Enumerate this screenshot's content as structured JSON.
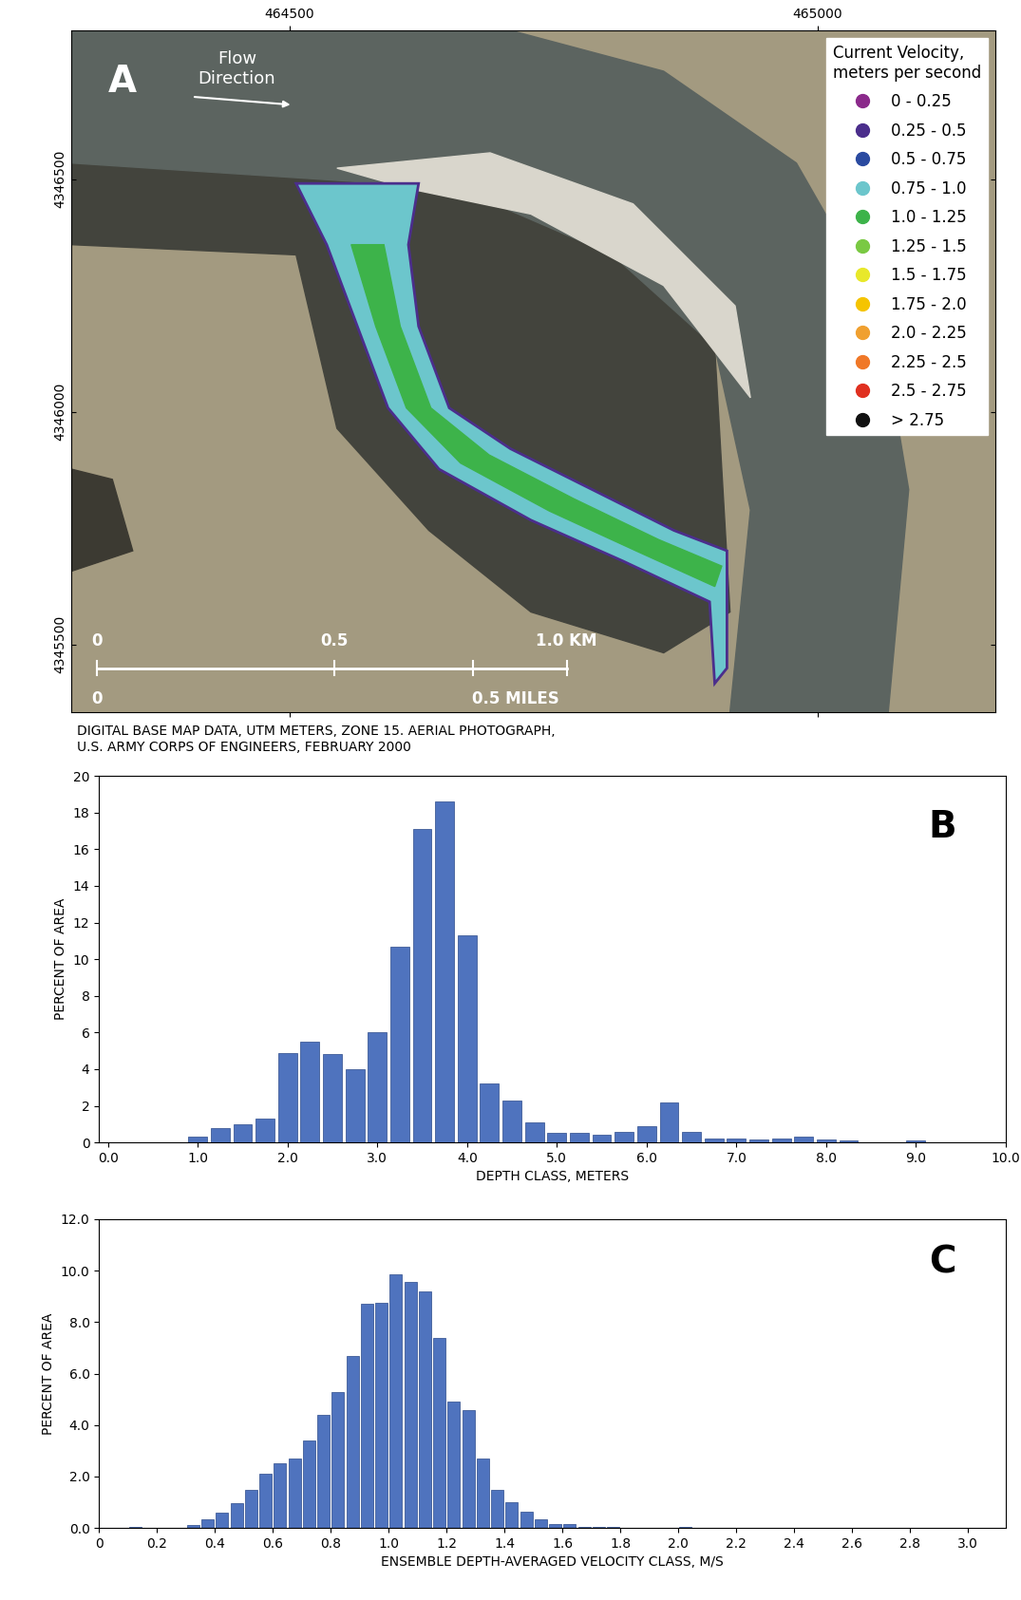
{
  "chart_data": [
    {
      "type": "map",
      "xlim": [
        464294,
        465168
      ],
      "ylim": [
        4345355,
        4346820
      ],
      "xticks": [
        464500,
        465000
      ],
      "yticks": [
        4345500,
        4346000,
        4346500
      ],
      "legend": "upper right",
      "legend_title": "Current Velocity,\nmeters per second",
      "series": [
        {
          "name": "0 - 0.25",
          "color": "#8b2a8b"
        },
        {
          "name": "0.25 - 0.5",
          "color": "#4b2e8c"
        },
        {
          "name": "0.5 - 0.75",
          "color": "#2a4aa0"
        },
        {
          "name": "0.75 - 1.0",
          "color": "#6cc6cc"
        },
        {
          "name": "1.0 - 1.25",
          "color": "#3db34a"
        },
        {
          "name": "1.25 - 1.5",
          "color": "#7ac943"
        },
        {
          "name": "1.5 - 1.75",
          "color": "#e8e82a"
        },
        {
          "name": "1.75 - 2.0",
          "color": "#f5c400"
        },
        {
          "name": "2.0 - 2.25",
          "color": "#f0a030"
        },
        {
          "name": "2.25 - 2.5",
          "color": "#f07828"
        },
        {
          "name": "2.5 - 2.75",
          "color": "#e03020"
        },
        {
          "name": "> 2.75",
          "color": "#111111"
        }
      ],
      "annotations": [
        "A",
        "Flow\nDirection",
        "0",
        "0.5",
        "1.0 KM",
        "0",
        "0.5 MILES"
      ],
      "caption": "DIGITAL BASE MAP DATA, UTM METERS, ZONE 15. AERIAL PHOTOGRAPH,\nU.S. ARMY CORPS OF ENGINEERS, FEBRUARY 2000"
    },
    {
      "type": "histogram",
      "annotations": [
        "B"
      ],
      "xlabel": "DEPTH CLASS, METERS",
      "ylabel": "PERCENT OF AREA",
      "color": "#4f73be",
      "bins": [
        0.875,
        1.125,
        1.375,
        1.625,
        1.875,
        2.125,
        2.375,
        2.625,
        2.875,
        3.125,
        3.375,
        3.625,
        3.875,
        4.125,
        4.375,
        4.625,
        4.875,
        5.125,
        5.375,
        5.625,
        5.875,
        6.125,
        6.375,
        6.625,
        6.875,
        7.125,
        7.375,
        7.625,
        7.875,
        8.125,
        8.375,
        8.625,
        8.875,
        9.125
      ],
      "values": [
        0.3,
        0.8,
        1.0,
        1.3,
        4.9,
        5.5,
        4.8,
        4.0,
        6.0,
        10.7,
        17.1,
        18.6,
        11.3,
        3.2,
        2.3,
        1.1,
        0.5,
        0.5,
        0.4,
        0.6,
        0.9,
        2.2,
        0.6,
        0.2,
        0.2,
        0.15,
        0.2,
        0.3,
        0.15,
        0.1,
        0,
        0,
        0.1
      ],
      "xlim": [
        -0.1,
        10.0
      ],
      "ylim": [
        0,
        20
      ],
      "xticks": [
        {
          "value": 0,
          "label": "0.0"
        },
        {
          "value": 1,
          "label": "1.0"
        },
        {
          "value": 2,
          "label": "2.0"
        },
        {
          "value": 3,
          "label": "3.0"
        },
        {
          "value": 4,
          "label": "4.0"
        },
        {
          "value": 5,
          "label": "5.0"
        },
        {
          "value": 6,
          "label": "6.0"
        },
        {
          "value": 7,
          "label": "7.0"
        },
        {
          "value": 8,
          "label": "8.0"
        },
        {
          "value": 9,
          "label": "9.0"
        },
        {
          "value": 10,
          "label": "10.0"
        }
      ],
      "yticks": [
        0,
        2,
        4,
        6,
        8,
        10,
        12,
        14,
        16,
        18,
        20
      ],
      "grid": false
    },
    {
      "type": "histogram",
      "annotations": [
        "C"
      ],
      "xlabel": "ENSEMBLE DEPTH-AVERAGED VELOCITY CLASS, M/S",
      "ylabel": "PERCENT OF AREA",
      "color": "#4f73be",
      "bins": [
        0.1,
        0.15,
        0.2,
        0.25,
        0.3,
        0.35,
        0.4,
        0.45,
        0.5,
        0.55,
        0.6,
        0.65,
        0.7,
        0.75,
        0.8,
        0.85,
        0.9,
        0.95,
        1.0,
        1.05,
        1.1,
        1.15,
        1.2,
        1.25,
        1.3,
        1.35,
        1.4,
        1.45,
        1.5,
        1.55,
        1.6,
        1.65,
        1.7,
        1.75,
        1.8,
        1.85,
        1.9,
        1.95,
        2.0,
        2.05
      ],
      "values": [
        0.05,
        0,
        0,
        0,
        0.1,
        0.35,
        0.6,
        0.95,
        1.5,
        2.1,
        2.5,
        2.7,
        3.4,
        4.4,
        5.3,
        6.7,
        8.7,
        8.75,
        9.85,
        9.55,
        9.2,
        7.4,
        4.9,
        4.6,
        2.7,
        1.5,
        1.0,
        0.65,
        0.35,
        0.15,
        0.15,
        0.05,
        0.05,
        0.05,
        0,
        0,
        0,
        0,
        0.05
      ],
      "xlim": [
        0,
        3.13
      ],
      "ylim": [
        0,
        12
      ],
      "xticks": [
        0,
        0.2,
        0.4,
        0.6,
        0.8,
        {
          "value": 1,
          "label": "1.0"
        },
        1.2,
        1.4,
        1.6,
        1.8,
        {
          "value": 2,
          "label": "2.0"
        },
        2.2,
        2.4,
        2.6,
        2.8,
        {
          "value": 3,
          "label": "3.0"
        }
      ],
      "yticks": [
        {
          "value": 0,
          "label": "0.0"
        },
        {
          "value": 2,
          "label": "2.0"
        },
        {
          "value": 4,
          "label": "4.0"
        },
        {
          "value": 6,
          "label": "6.0"
        },
        {
          "value": 8,
          "label": "8.0"
        },
        {
          "value": 10,
          "label": "10.0"
        },
        {
          "value": 12,
          "label": "12.0"
        }
      ],
      "grid": false
    }
  ]
}
